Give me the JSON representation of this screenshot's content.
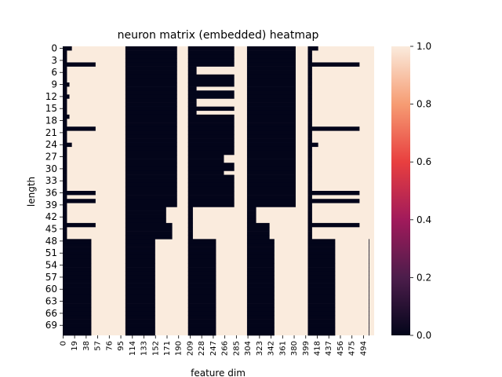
{
  "chart_data": {
    "type": "heatmap",
    "title": "neuron matrix (embedded) heatmap",
    "xlabel": "feature dim",
    "ylabel": "length",
    "x_ticks": [
      "0",
      "19",
      "38",
      "57",
      "76",
      "95",
      "114",
      "133",
      "152",
      "171",
      "190",
      "209",
      "228",
      "247",
      "266",
      "285",
      "304",
      "323",
      "342",
      "361",
      "380",
      "399",
      "418",
      "437",
      "456",
      "475",
      "494"
    ],
    "y_ticks": [
      "0",
      "3",
      "6",
      "9",
      "12",
      "15",
      "18",
      "21",
      "24",
      "27",
      "30",
      "33",
      "36",
      "39",
      "42",
      "45",
      "48",
      "51",
      "54",
      "57",
      "60",
      "63",
      "66",
      "69"
    ],
    "n_rows": 72,
    "n_cols": 512,
    "value_range": [
      0.0,
      1.0
    ],
    "colormap": "rocket",
    "colorbar_ticks": [
      "0.0",
      "0.2",
      "0.4",
      "0.6",
      "0.8",
      "1.0"
    ],
    "dark_blocks_description_rows": [
      {
        "rows": [
          0,
          47
        ],
        "dark_cols": [
          [
            0,
            3
          ],
          [
            103,
            188
          ],
          [
            206,
            282
          ],
          [
            303,
            383
          ],
          [
            403,
            410
          ]
        ]
      },
      {
        "rows": [
          48,
          71
        ],
        "dark_cols": [
          [
            0,
            47
          ],
          [
            103,
            152
          ],
          [
            206,
            252
          ],
          [
            303,
            348
          ],
          [
            403,
            448
          ],
          [
            503,
            503
          ]
        ]
      }
    ]
  }
}
